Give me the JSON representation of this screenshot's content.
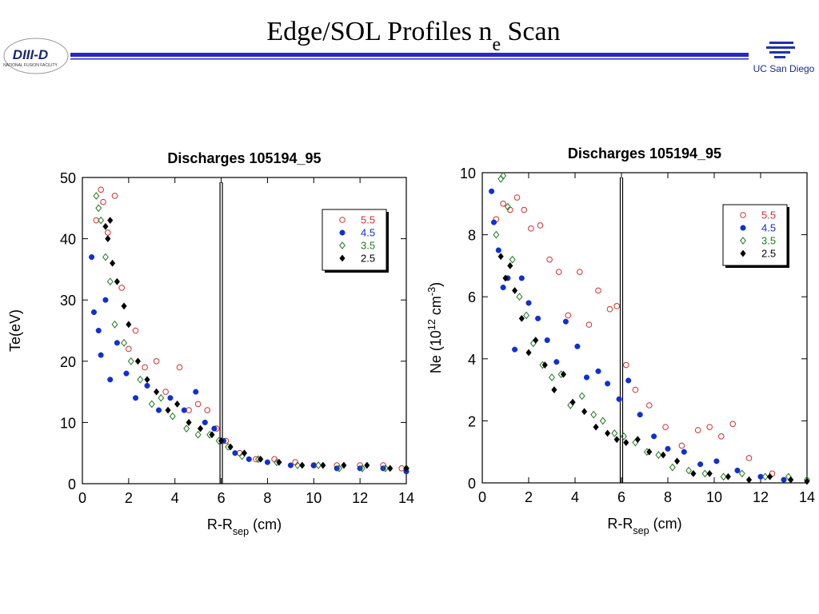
{
  "header": {
    "title": [
      {
        "text": "Edge/SOL Profiles n"
      },
      {
        "sub": "e"
      },
      {
        "text": " Scan"
      }
    ],
    "logo_left": "DIII-D",
    "logo_left_sub": "NATIONAL FUSION FACILITY",
    "logo_right": "UC San Diego"
  },
  "chart_data": [
    {
      "type": "scatter",
      "title": "Discharges 105194_95",
      "xlabel": [
        {
          "text": "R-R"
        },
        {
          "sub": "sep"
        },
        {
          "text": " (cm)"
        }
      ],
      "ylabel": [
        {
          "text": "Te(eV)"
        }
      ],
      "xlim": [
        0,
        14
      ],
      "xticks": [
        0,
        2,
        4,
        6,
        8,
        10,
        12,
        14
      ],
      "ylim": [
        0,
        50
      ],
      "yticks": [
        0,
        10,
        20,
        30,
        40,
        50
      ],
      "vline": 6,
      "legend": "upper right",
      "series": [
        {
          "name": "5.5",
          "color": "#d03030",
          "marker": "open-circle",
          "x": [
            0.6,
            0.8,
            0.9,
            1.1,
            1.4,
            1.7,
            2.0,
            2.3,
            2.7,
            3.2,
            3.6,
            4.2,
            4.6,
            5.0,
            5.4,
            5.8,
            6.2,
            6.8,
            7.5,
            8.3,
            9.2,
            10.0,
            11.0,
            12.0,
            13.0,
            13.8
          ],
          "values": [
            43,
            48,
            46,
            41,
            47,
            32,
            22,
            25,
            19,
            20,
            15,
            19,
            12,
            13,
            12,
            9,
            7,
            5,
            4,
            4,
            3.5,
            3,
            3,
            3,
            3,
            2.5
          ]
        },
        {
          "name": "4.5",
          "color": "#1030d0",
          "marker": "filled-circle",
          "x": [
            0.4,
            0.5,
            0.7,
            0.8,
            1.0,
            1.2,
            1.5,
            1.9,
            2.3,
            2.8,
            3.3,
            3.8,
            4.4,
            4.9,
            5.3,
            5.7,
            6.1,
            6.6,
            7.2,
            8.0,
            9.0,
            10.0,
            11.0,
            12.0,
            13.0,
            14.0
          ],
          "values": [
            37,
            28,
            25,
            21,
            30,
            17,
            23,
            18,
            14,
            16,
            12,
            14,
            12,
            15,
            10,
            9,
            7,
            5,
            4,
            3.5,
            3,
            3,
            2.5,
            2.5,
            2.5,
            2
          ]
        },
        {
          "name": "3.5",
          "color": "#207a20",
          "marker": "open-diamond",
          "x": [
            0.6,
            0.7,
            0.8,
            1.0,
            1.2,
            1.4,
            1.8,
            2.1,
            2.5,
            3.0,
            3.4,
            3.9,
            4.5,
            5.0,
            5.5,
            5.9,
            6.3,
            6.9,
            7.6,
            8.4,
            9.3,
            10.2,
            11.1,
            12.1,
            13.1,
            14.0
          ],
          "values": [
            47,
            45,
            43,
            37,
            33,
            26,
            23,
            20,
            17,
            13,
            14,
            11,
            9,
            8,
            8,
            7,
            6,
            4.5,
            4,
            3.5,
            3,
            3,
            2.5,
            2.5,
            2.5,
            2.5
          ]
        },
        {
          "name": "2.5",
          "color": "#000000",
          "marker": "filled-diamond",
          "x": [
            1.0,
            1.1,
            1.2,
            1.3,
            1.5,
            1.8,
            2.0,
            2.4,
            2.8,
            3.2,
            3.7,
            4.1,
            4.6,
            5.1,
            5.6,
            6.0,
            6.4,
            7.0,
            7.7,
            8.5,
            9.5,
            10.4,
            11.3,
            12.3,
            13.3,
            14.0
          ],
          "values": [
            42,
            40,
            43,
            36,
            33,
            29,
            26,
            20,
            17,
            15,
            12,
            13,
            10,
            9,
            8,
            7,
            6,
            5,
            4,
            3.5,
            3,
            3,
            3,
            3,
            2.5,
            2.5
          ]
        }
      ]
    },
    {
      "type": "scatter",
      "title": "Discharges 105194_95",
      "xlabel": [
        {
          "text": "R-R"
        },
        {
          "sub": "sep"
        },
        {
          "text": " (cm)"
        }
      ],
      "ylabel": [
        {
          "text": "Ne (10"
        },
        {
          "sup": "12"
        },
        {
          "text": " cm"
        },
        {
          "sup": "-3"
        },
        {
          "text": ")"
        }
      ],
      "xlim": [
        0,
        14
      ],
      "xticks": [
        0,
        2,
        4,
        6,
        8,
        10,
        12,
        14
      ],
      "ylim": [
        0,
        10
      ],
      "yticks": [
        0,
        2,
        4,
        6,
        8,
        10
      ],
      "vline": 6,
      "legend": "upper right",
      "series": [
        {
          "name": "5.5",
          "color": "#d03030",
          "marker": "open-circle",
          "x": [
            0.6,
            0.9,
            1.2,
            1.5,
            1.8,
            2.1,
            2.5,
            2.9,
            3.3,
            3.7,
            4.2,
            4.6,
            5.0,
            5.5,
            5.8,
            6.2,
            6.6,
            7.2,
            7.9,
            8.6,
            9.3,
            9.8,
            10.3,
            10.8,
            11.5,
            12.5
          ],
          "values": [
            8.5,
            9.0,
            8.8,
            9.2,
            8.8,
            8.2,
            8.3,
            7.2,
            6.8,
            5.4,
            6.8,
            5.1,
            6.2,
            5.6,
            5.7,
            3.8,
            3.0,
            2.5,
            1.8,
            1.2,
            1.7,
            1.8,
            1.5,
            1.9,
            0.8,
            0.3
          ]
        },
        {
          "name": "4.5",
          "color": "#1030d0",
          "marker": "filled-circle",
          "x": [
            0.4,
            0.5,
            0.7,
            0.9,
            1.1,
            1.4,
            1.7,
            2.0,
            2.4,
            2.8,
            3.2,
            3.6,
            4.1,
            4.5,
            5.0,
            5.4,
            5.9,
            6.3,
            6.8,
            7.4,
            8.0,
            8.7,
            9.4,
            10.1,
            11.0,
            12.0,
            13.0
          ],
          "values": [
            9.4,
            8.4,
            7.5,
            6.3,
            6.6,
            4.3,
            6.6,
            5.8,
            5.3,
            4.6,
            3.9,
            5.2,
            4.4,
            3.4,
            3.6,
            3.2,
            2.7,
            3.3,
            2.2,
            1.5,
            1.1,
            1.0,
            0.6,
            0.7,
            0.4,
            0.2,
            0.1
          ]
        },
        {
          "name": "3.5",
          "color": "#207a20",
          "marker": "open-diamond",
          "x": [
            0.6,
            0.8,
            0.9,
            1.1,
            1.3,
            1.6,
            1.9,
            2.2,
            2.6,
            3.0,
            3.4,
            3.8,
            4.3,
            4.8,
            5.2,
            5.7,
            6.1,
            6.6,
            7.1,
            7.6,
            8.2,
            8.9,
            9.6,
            10.4,
            11.2,
            12.2,
            13.2,
            14.0
          ],
          "values": [
            8.0,
            9.8,
            9.9,
            8.9,
            7.2,
            6.0,
            5.4,
            4.5,
            3.8,
            3.4,
            3.5,
            2.5,
            2.8,
            2.2,
            2.0,
            1.6,
            1.5,
            1.3,
            1.0,
            0.9,
            0.5,
            0.4,
            0.3,
            0.2,
            0.3,
            0.2,
            0.2,
            0.1
          ]
        },
        {
          "name": "2.5",
          "color": "#000000",
          "marker": "filled-diamond",
          "x": [
            0.8,
            1.0,
            1.2,
            1.4,
            1.7,
            2.0,
            2.3,
            2.7,
            3.1,
            3.5,
            3.9,
            4.4,
            4.9,
            5.4,
            5.8,
            6.2,
            6.7,
            7.2,
            7.8,
            8.4,
            9.1,
            9.8,
            10.6,
            11.5,
            12.4,
            13.3,
            14.0
          ],
          "values": [
            7.3,
            6.6,
            7.0,
            6.2,
            5.3,
            4.2,
            4.6,
            3.8,
            3.0,
            3.5,
            2.6,
            2.3,
            1.8,
            1.6,
            1.4,
            1.3,
            1.4,
            1.0,
            0.9,
            0.7,
            0.3,
            0.3,
            0.2,
            0.1,
            0.2,
            0.1,
            0.05
          ]
        }
      ]
    }
  ]
}
